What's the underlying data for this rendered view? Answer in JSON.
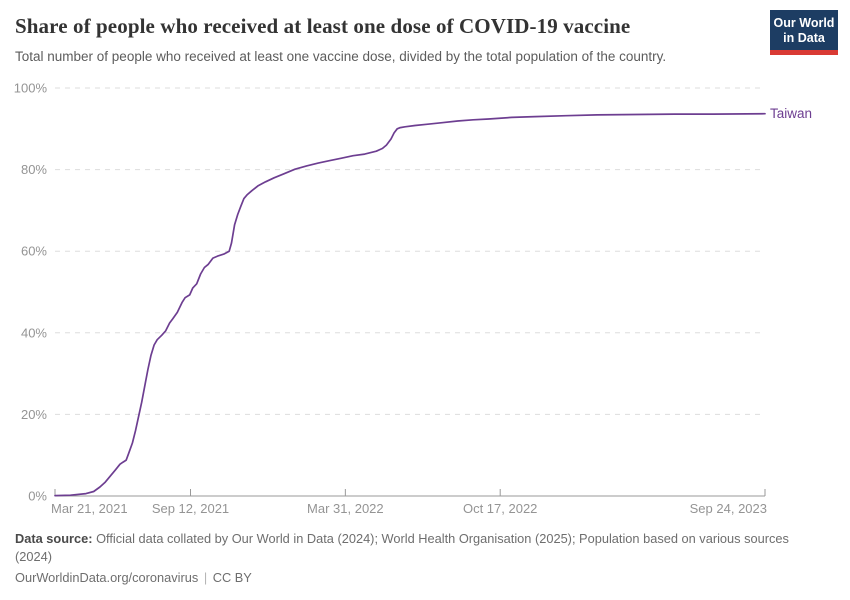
{
  "header": {
    "title": "Share of people who received at least one dose of COVID-19 vaccine",
    "subtitle": "Total number of people who received at least one vaccine dose, divided by the total population of the country.",
    "logo": {
      "line1": "Our World",
      "line2": "in Data",
      "bg_color": "#1d3d63",
      "accent_color": "#d93a34"
    }
  },
  "chart_data": {
    "type": "line",
    "title": "Share of people who received at least one dose of COVID-19 vaccine",
    "x_domain": [
      "2021-03-21",
      "2023-09-24"
    ],
    "y_domain": [
      0,
      100
    ],
    "grid": "horizontal-dashed",
    "legend_position": "end-of-line-label",
    "colors": {
      "grid": "#dddddd",
      "axis": "#999999",
      "tick_text": "#949494"
    },
    "y_ticks": [
      {
        "value": 0,
        "label": "0%"
      },
      {
        "value": 20,
        "label": "20%"
      },
      {
        "value": 40,
        "label": "40%"
      },
      {
        "value": 60,
        "label": "60%"
      },
      {
        "value": 80,
        "label": "80%"
      },
      {
        "value": 100,
        "label": "100%"
      }
    ],
    "x_ticks": [
      {
        "date": "2021-03-21",
        "label": "Mar 21, 2021",
        "anchor": "start"
      },
      {
        "date": "2021-09-12",
        "label": "Sep 12, 2021",
        "anchor": "middle"
      },
      {
        "date": "2022-03-31",
        "label": "Mar 31, 2022",
        "anchor": "middle"
      },
      {
        "date": "2022-10-17",
        "label": "Oct 17, 2022",
        "anchor": "middle"
      },
      {
        "date": "2023-09-24",
        "label": "Sep 24, 2023",
        "anchor": "end"
      }
    ],
    "series": [
      {
        "name": "Taiwan",
        "color": "#6d3e91",
        "points": [
          [
            "2021-03-21",
            0.1
          ],
          [
            "2021-04-10",
            0.2
          ],
          [
            "2021-04-30",
            0.6
          ],
          [
            "2021-05-10",
            1.1
          ],
          [
            "2021-05-18",
            2.2
          ],
          [
            "2021-05-25",
            3.4
          ],
          [
            "2021-06-01",
            5.0
          ],
          [
            "2021-06-07",
            6.4
          ],
          [
            "2021-06-13",
            7.8
          ],
          [
            "2021-06-17",
            8.3
          ],
          [
            "2021-06-21",
            8.8
          ],
          [
            "2021-06-24",
            10.4
          ],
          [
            "2021-06-29",
            13.0
          ],
          [
            "2021-07-03",
            16.0
          ],
          [
            "2021-07-07",
            19.5
          ],
          [
            "2021-07-11",
            23.0
          ],
          [
            "2021-07-15",
            27.0
          ],
          [
            "2021-07-19",
            31.0
          ],
          [
            "2021-07-23",
            34.5
          ],
          [
            "2021-07-27",
            37.0
          ],
          [
            "2021-07-31",
            38.3
          ],
          [
            "2021-08-06",
            39.4
          ],
          [
            "2021-08-11",
            40.5
          ],
          [
            "2021-08-16",
            42.4
          ],
          [
            "2021-08-20",
            43.4
          ],
          [
            "2021-08-26",
            45.0
          ],
          [
            "2021-09-01",
            47.4
          ],
          [
            "2021-09-05",
            48.6
          ],
          [
            "2021-09-11",
            49.3
          ],
          [
            "2021-09-15",
            51.0
          ],
          [
            "2021-09-20",
            52.0
          ],
          [
            "2021-09-25",
            54.4
          ],
          [
            "2021-09-30",
            56.0
          ],
          [
            "2021-10-05",
            56.8
          ],
          [
            "2021-10-11",
            58.3
          ],
          [
            "2021-10-17",
            58.8
          ],
          [
            "2021-10-25",
            59.3
          ],
          [
            "2021-11-01",
            60.0
          ],
          [
            "2021-11-04",
            62.0
          ],
          [
            "2021-11-08",
            66.5
          ],
          [
            "2021-11-12",
            69.0
          ],
          [
            "2021-11-16",
            71.0
          ],
          [
            "2021-11-20",
            72.9
          ],
          [
            "2021-11-24",
            73.8
          ],
          [
            "2021-11-30",
            74.8
          ],
          [
            "2021-12-08",
            76.0
          ],
          [
            "2021-12-18",
            77.0
          ],
          [
            "2021-12-29",
            78.0
          ],
          [
            "2022-01-11",
            79.0
          ],
          [
            "2022-01-25",
            80.1
          ],
          [
            "2022-02-09",
            80.9
          ],
          [
            "2022-02-24",
            81.6
          ],
          [
            "2022-03-11",
            82.2
          ],
          [
            "2022-03-26",
            82.8
          ],
          [
            "2022-04-10",
            83.4
          ],
          [
            "2022-04-25",
            83.8
          ],
          [
            "2022-05-10",
            84.5
          ],
          [
            "2022-05-18",
            85.2
          ],
          [
            "2022-05-23",
            86.0
          ],
          [
            "2022-05-29",
            87.5
          ],
          [
            "2022-06-02",
            89.0
          ],
          [
            "2022-06-06",
            90.0
          ],
          [
            "2022-06-10",
            90.3
          ],
          [
            "2022-06-16",
            90.5
          ],
          [
            "2022-06-29",
            90.8
          ],
          [
            "2022-07-14",
            91.1
          ],
          [
            "2022-08-03",
            91.5
          ],
          [
            "2022-08-23",
            91.9
          ],
          [
            "2022-09-12",
            92.2
          ],
          [
            "2022-10-02",
            92.4
          ],
          [
            "2022-11-01",
            92.8
          ],
          [
            "2022-12-01",
            93.0
          ],
          [
            "2023-01-10",
            93.2
          ],
          [
            "2023-02-19",
            93.4
          ],
          [
            "2023-04-10",
            93.5
          ],
          [
            "2023-05-30",
            93.6
          ],
          [
            "2023-07-19",
            93.6
          ],
          [
            "2023-09-24",
            93.7
          ]
        ]
      }
    ]
  },
  "footer": {
    "source_label": "Data source:",
    "source_text": "Official data collated by Our World in Data (2024); World Health Organisation (2025); Population based on various sources (2024)",
    "link_text": "OurWorldinData.org/coronavirus",
    "separator": "|",
    "license": "CC BY"
  }
}
